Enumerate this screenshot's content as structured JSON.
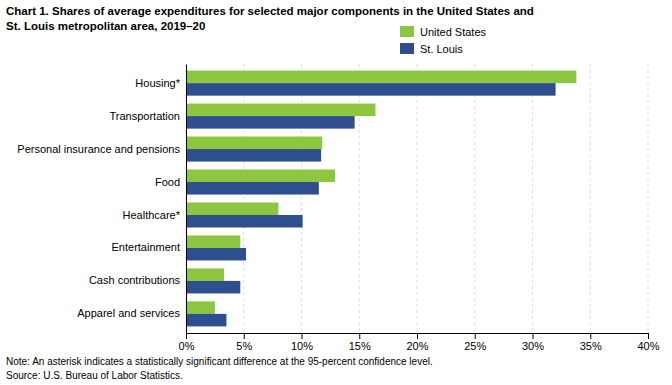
{
  "chart_data": {
    "type": "bar",
    "orientation": "horizontal",
    "title": "Chart 1. Shares of average expenditures for selected major components in the United States and\nSt. Louis metropolitan area, 2019–20",
    "categories": [
      "Apparel and services",
      "Cash contributions",
      "Entertainment",
      "Healthcare*",
      "Food",
      "Personal insurance and pensions",
      "Transportation",
      "Housing*"
    ],
    "series": [
      {
        "name": "United States",
        "color": "#8DC63F",
        "values": [
          2.5,
          3.3,
          4.7,
          8.0,
          12.9,
          11.8,
          16.4,
          33.8
        ]
      },
      {
        "name": "St. Louis",
        "color": "#2E4E8E",
        "values": [
          3.5,
          4.7,
          5.2,
          10.1,
          11.5,
          11.7,
          14.6,
          32.0
        ]
      }
    ],
    "xlim": [
      0,
      40
    ],
    "xticks": [
      {
        "value": 0,
        "label": "0%"
      },
      {
        "value": 5,
        "label": "5%"
      },
      {
        "value": 10,
        "label": "10%"
      },
      {
        "value": 15,
        "label": "15%"
      },
      {
        "value": 20,
        "label": "20%"
      },
      {
        "value": 25,
        "label": "25%"
      },
      {
        "value": 30,
        "label": "30%"
      },
      {
        "value": 35,
        "label": "35%"
      },
      {
        "value": 40,
        "label": "40%"
      }
    ],
    "grid": true,
    "legend": "upper right",
    "annotations": [
      "Note: An asterisk indicates a statistically significant difference at the 95-percent confidence level.",
      "Source: U.S. Bureau of Labor Statistics."
    ]
  }
}
